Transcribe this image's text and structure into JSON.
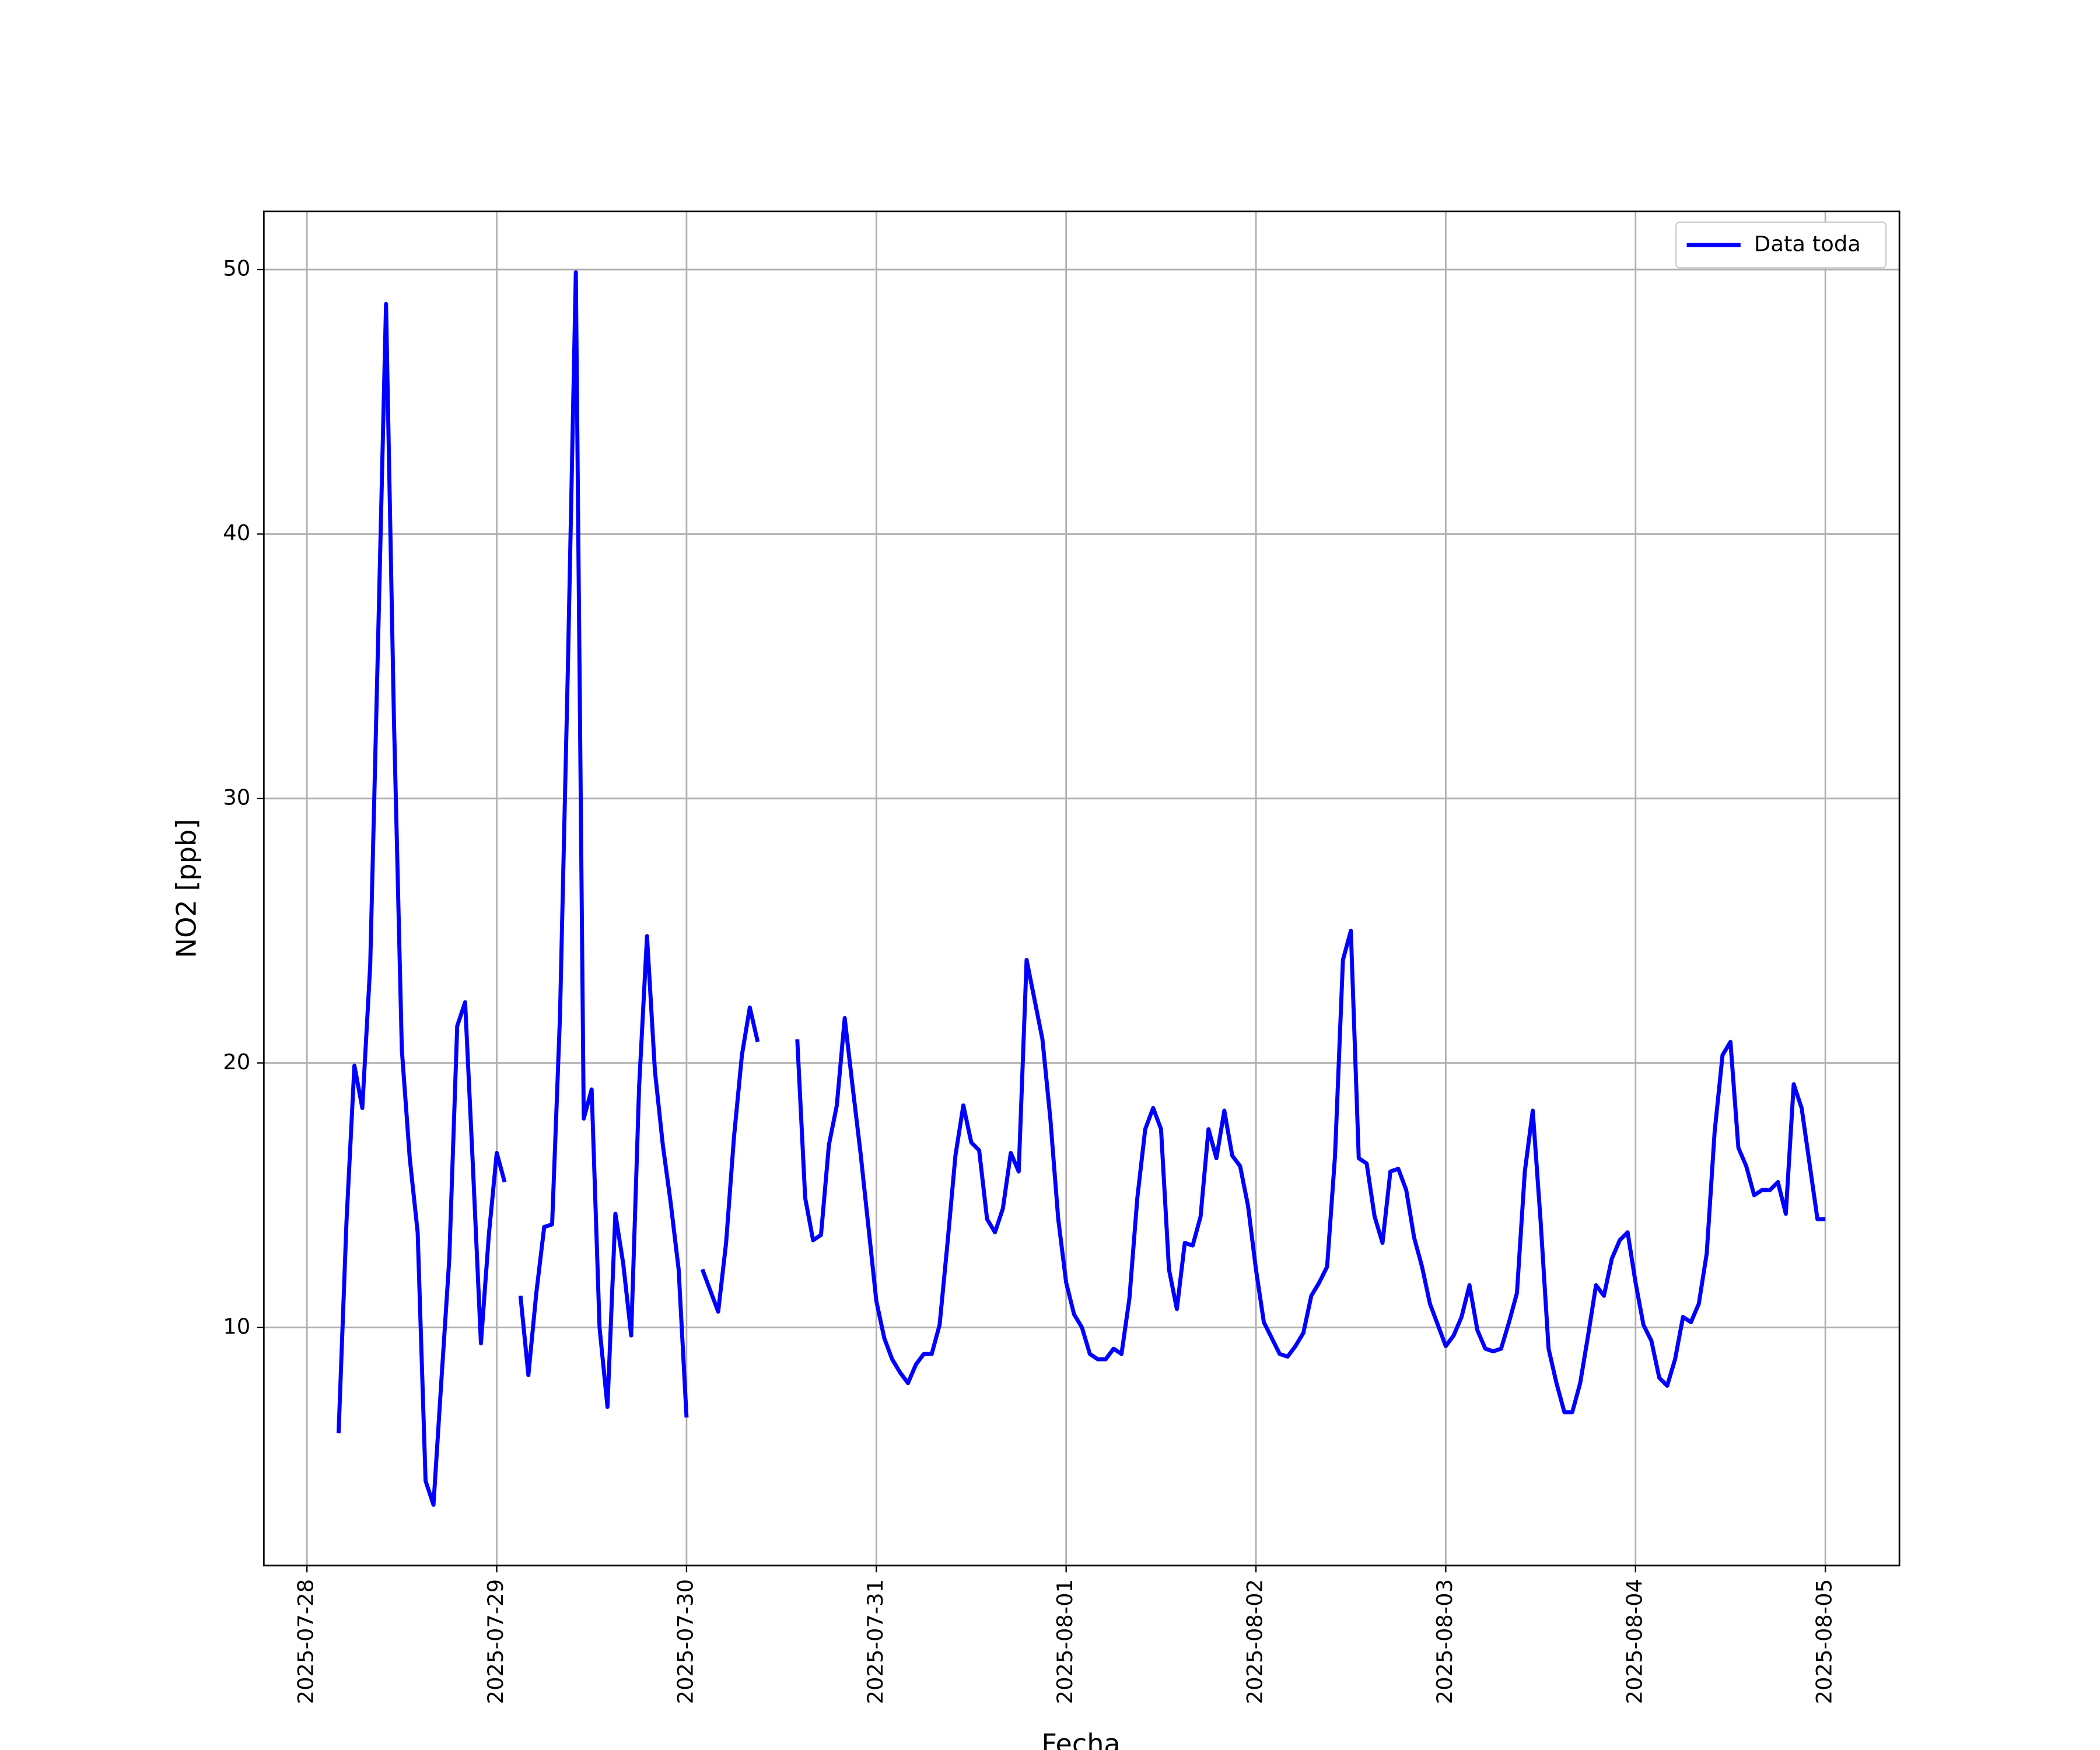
{
  "chart_data": {
    "type": "line",
    "xlabel": "Fecha",
    "ylabel": "NO2 [ppb]",
    "x": [
      "2025-07-28T04:00",
      "2025-07-28T05:00",
      "2025-07-28T06:00",
      "2025-07-28T07:00",
      "2025-07-28T08:00",
      "2025-07-28T09:00",
      "2025-07-28T10:00",
      "2025-07-28T11:00",
      "2025-07-28T12:00",
      "2025-07-28T13:00",
      "2025-07-28T14:00",
      "2025-07-28T15:00",
      "2025-07-28T16:00",
      "2025-07-28T17:00",
      "2025-07-28T18:00",
      "2025-07-28T19:00",
      "2025-07-28T20:00",
      "2025-07-28T21:00",
      "2025-07-28T22:00",
      "2025-07-28T23:00",
      "2025-07-29T00:00",
      "2025-07-29T01:00",
      "2025-07-29T02:00",
      "2025-07-29T03:00",
      "2025-07-29T04:00",
      "2025-07-29T05:00",
      "2025-07-29T06:00",
      "2025-07-29T07:00",
      "2025-07-29T08:00",
      "2025-07-29T09:00",
      "2025-07-29T10:00",
      "2025-07-29T11:00",
      "2025-07-29T12:00",
      "2025-07-29T13:00",
      "2025-07-29T14:00",
      "2025-07-29T15:00",
      "2025-07-29T16:00",
      "2025-07-29T17:00",
      "2025-07-29T18:00",
      "2025-07-29T19:00",
      "2025-07-29T20:00",
      "2025-07-29T21:00",
      "2025-07-29T22:00",
      "2025-07-29T23:00",
      "2025-07-30T00:00",
      "2025-07-30T01:00",
      "2025-07-30T02:00",
      "2025-07-30T03:00",
      "2025-07-30T04:00",
      "2025-07-30T05:00",
      "2025-07-30T06:00",
      "2025-07-30T07:00",
      "2025-07-30T08:00",
      "2025-07-30T09:00",
      "2025-07-30T10:00",
      "2025-07-30T11:00",
      "2025-07-30T12:00",
      "2025-07-30T13:00",
      "2025-07-30T14:00",
      "2025-07-30T15:00",
      "2025-07-30T16:00",
      "2025-07-30T17:00",
      "2025-07-30T18:00",
      "2025-07-30T19:00",
      "2025-07-30T20:00",
      "2025-07-30T21:00",
      "2025-07-30T22:00",
      "2025-07-30T23:00",
      "2025-07-31T00:00",
      "2025-07-31T01:00",
      "2025-07-31T02:00",
      "2025-07-31T03:00",
      "2025-07-31T04:00",
      "2025-07-31T05:00",
      "2025-07-31T06:00",
      "2025-07-31T07:00",
      "2025-07-31T08:00",
      "2025-07-31T09:00",
      "2025-07-31T10:00",
      "2025-07-31T11:00",
      "2025-07-31T12:00",
      "2025-07-31T13:00",
      "2025-07-31T14:00",
      "2025-07-31T15:00",
      "2025-07-31T16:00",
      "2025-07-31T17:00",
      "2025-07-31T18:00",
      "2025-07-31T19:00",
      "2025-07-31T20:00",
      "2025-07-31T21:00",
      "2025-07-31T22:00",
      "2025-07-31T23:00",
      "2025-08-01T00:00",
      "2025-08-01T01:00",
      "2025-08-01T02:00",
      "2025-08-01T03:00",
      "2025-08-01T04:00",
      "2025-08-01T05:00",
      "2025-08-01T06:00",
      "2025-08-01T07:00",
      "2025-08-01T08:00",
      "2025-08-01T09:00",
      "2025-08-01T10:00",
      "2025-08-01T11:00",
      "2025-08-01T12:00",
      "2025-08-01T13:00",
      "2025-08-01T14:00",
      "2025-08-01T15:00",
      "2025-08-01T16:00",
      "2025-08-01T17:00",
      "2025-08-01T18:00",
      "2025-08-01T19:00",
      "2025-08-01T20:00",
      "2025-08-01T21:00",
      "2025-08-01T22:00",
      "2025-08-01T23:00",
      "2025-08-02T00:00",
      "2025-08-02T01:00",
      "2025-08-02T02:00",
      "2025-08-02T03:00",
      "2025-08-02T04:00",
      "2025-08-02T05:00",
      "2025-08-02T06:00",
      "2025-08-02T07:00",
      "2025-08-02T08:00",
      "2025-08-02T09:00",
      "2025-08-02T10:00",
      "2025-08-02T11:00",
      "2025-08-02T12:00",
      "2025-08-02T13:00",
      "2025-08-02T14:00",
      "2025-08-02T15:00",
      "2025-08-02T16:00",
      "2025-08-02T17:00",
      "2025-08-02T18:00",
      "2025-08-02T19:00",
      "2025-08-02T20:00",
      "2025-08-02T21:00",
      "2025-08-02T22:00",
      "2025-08-02T23:00",
      "2025-08-03T00:00",
      "2025-08-03T01:00",
      "2025-08-03T02:00",
      "2025-08-03T03:00",
      "2025-08-03T04:00",
      "2025-08-03T05:00",
      "2025-08-03T06:00",
      "2025-08-03T07:00",
      "2025-08-03T08:00",
      "2025-08-03T09:00",
      "2025-08-03T10:00",
      "2025-08-03T11:00",
      "2025-08-03T12:00",
      "2025-08-03T13:00",
      "2025-08-03T14:00",
      "2025-08-03T15:00",
      "2025-08-03T16:00",
      "2025-08-03T17:00",
      "2025-08-03T18:00",
      "2025-08-03T19:00",
      "2025-08-03T20:00",
      "2025-08-03T21:00",
      "2025-08-03T22:00",
      "2025-08-03T23:00",
      "2025-08-04T00:00",
      "2025-08-04T01:00",
      "2025-08-04T02:00",
      "2025-08-04T03:00",
      "2025-08-04T04:00",
      "2025-08-04T05:00",
      "2025-08-04T06:00",
      "2025-08-04T07:00",
      "2025-08-04T08:00",
      "2025-08-04T09:00",
      "2025-08-04T10:00",
      "2025-08-04T11:00",
      "2025-08-04T12:00",
      "2025-08-04T13:00",
      "2025-08-04T14:00",
      "2025-08-04T15:00",
      "2025-08-04T16:00",
      "2025-08-04T17:00",
      "2025-08-04T18:00",
      "2025-08-04T19:00",
      "2025-08-04T20:00",
      "2025-08-04T21:00",
      "2025-08-04T22:00",
      "2025-08-04T23:00",
      "2025-08-05T00:00"
    ],
    "series": [
      {
        "name": "Data toda",
        "color": "#0000ff",
        "values": [
          6.0,
          14,
          19.9,
          18.3,
          23.7,
          36,
          48.7,
          33,
          20.5,
          16.4,
          13.6,
          4.2,
          3.3,
          8,
          12.6,
          21.4,
          22.3,
          16,
          9.4,
          13.5,
          16.6,
          15.5,
          null,
          11.2,
          8.2,
          11.3,
          13.8,
          13.9,
          21.8,
          35,
          49.9,
          17.9,
          19,
          10,
          7,
          14.3,
          12.4,
          9.7,
          19.1,
          24.8,
          19.7,
          16.9,
          14.7,
          12.2,
          6.6,
          null,
          12.2,
          11.4,
          10.6,
          13.2,
          17.2,
          20.3,
          22.1,
          20.8,
          null,
          null,
          null,
          null,
          20.9,
          14.9,
          13.3,
          13.5,
          16.9,
          18.4,
          21.7,
          19.1,
          16.6,
          13.8,
          11,
          9.6,
          8.8,
          8.3,
          7.9,
          8.6,
          9,
          9,
          10.1,
          13.2,
          16.5,
          18.4,
          17,
          16.7,
          14.1,
          13.6,
          14.5,
          16.6,
          15.9,
          23.9,
          22.4,
          20.9,
          17.9,
          14.1,
          11.7,
          10.5,
          10,
          9,
          8.8,
          8.8,
          9.2,
          9,
          11.1,
          14.9,
          17.5,
          18.3,
          17.5,
          12.2,
          10.7,
          13.2,
          13.1,
          14.2,
          17.5,
          16.4,
          18.2,
          16.5,
          16.1,
          14.6,
          12.2,
          10.2,
          9.6,
          9,
          8.9,
          9.3,
          9.8,
          11.2,
          11.7,
          12.3,
          16.5,
          23.9,
          25,
          16.4,
          16.2,
          14.2,
          13.2,
          15.9,
          16,
          15.2,
          13.4,
          12.3,
          10.9,
          10.1,
          9.3,
          9.7,
          10.4,
          11.6,
          9.9,
          9.2,
          9.1,
          9.2,
          10.2,
          11.3,
          15.9,
          18.2,
          14,
          9.2,
          7.9,
          6.8,
          6.8,
          7.9,
          9.7,
          11.6,
          11.2,
          12.6,
          13.3,
          13.6,
          11.7,
          10.1,
          9.5,
          8.1,
          7.8,
          8.8,
          10.4,
          10.2,
          10.9,
          12.8,
          17.4,
          20.3,
          20.8,
          16.8,
          16.1,
          15,
          15.2,
          15.2,
          15.5,
          14.3,
          19.2,
          18.3,
          16.2,
          14.1,
          14.1
        ]
      }
    ],
    "xlim": [
      "2025-07-27T18:33",
      "2025-08-05T09:22"
    ],
    "xticks": [
      "2025-07-28",
      "2025-07-29",
      "2025-07-30",
      "2025-07-31",
      "2025-08-01",
      "2025-08-02",
      "2025-08-03",
      "2025-08-04",
      "2025-08-05"
    ],
    "ylim": [
      1.0,
      52.2
    ],
    "yticks": [
      10,
      20,
      30,
      40,
      50
    ],
    "grid": true,
    "legend": "upper right"
  }
}
